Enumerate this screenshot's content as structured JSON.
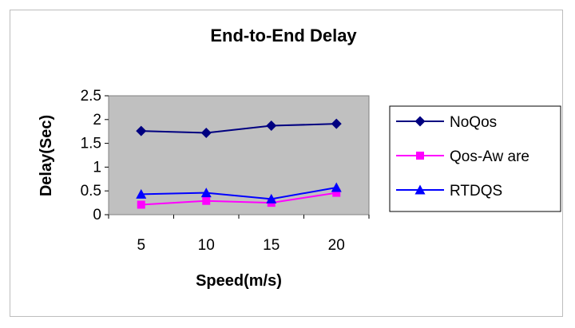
{
  "chart_data": {
    "type": "line",
    "title": "End-to-End Delay",
    "xlabel": "Speed(m/s)",
    "ylabel": "Delay(Sec)",
    "categories": [
      "5",
      "10",
      "15",
      "20"
    ],
    "ylim": [
      0,
      2.5
    ],
    "yticks": [
      "0",
      "0.5",
      "1",
      "1.5",
      "2",
      "2.5"
    ],
    "grid": false,
    "plot_background": "#c0c0c0",
    "legend_position": "right",
    "series": [
      {
        "name": "NoQos",
        "values": [
          1.76,
          1.72,
          1.87,
          1.91
        ],
        "color": "#000080",
        "marker": "diamond"
      },
      {
        "name": "Qos-Aw are",
        "values": [
          0.21,
          0.29,
          0.25,
          0.46
        ],
        "color": "#ff00ff",
        "marker": "square"
      },
      {
        "name": "RTDQS",
        "values": [
          0.43,
          0.46,
          0.33,
          0.57
        ],
        "color": "#0000ff",
        "marker": "triangle"
      }
    ]
  }
}
